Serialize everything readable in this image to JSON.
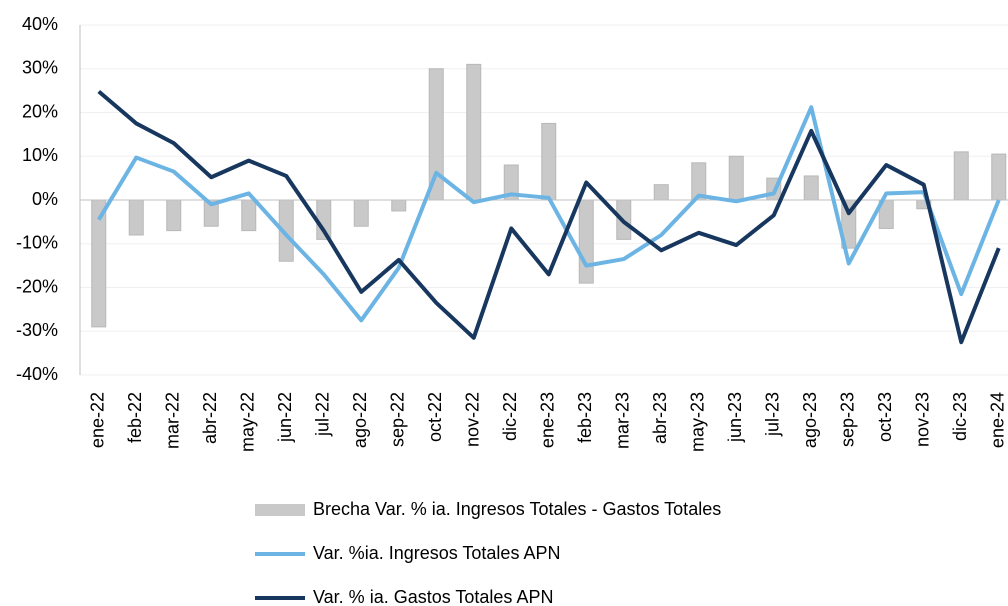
{
  "chart_data": {
    "type": "bar",
    "categories": [
      "ene-22",
      "feb-22",
      "mar-22",
      "abr-22",
      "may-22",
      "jun-22",
      "jul-22",
      "ago-22",
      "sep-22",
      "oct-22",
      "nov-22",
      "dic-22",
      "ene-23",
      "feb-23",
      "mar-23",
      "abr-23",
      "may-23",
      "jun-23",
      "jul-23",
      "ago-23",
      "sep-23",
      "oct-23",
      "nov-23",
      "dic-23",
      "ene-24"
    ],
    "series": [
      {
        "name": "Brecha Var. % ia. Ingresos Totales - Gastos Totales",
        "type": "bar",
        "color": "#c9c9c9",
        "values": [
          -29,
          -8,
          -7,
          -6,
          -7,
          -14,
          -9,
          -6,
          -2.5,
          30,
          31,
          8,
          17.5,
          -19,
          -9,
          3.5,
          8.5,
          10,
          5,
          5.5,
          -11,
          -6.5,
          -2,
          11,
          10.5
        ]
      },
      {
        "name": "Var. %ia. Ingresos Totales APN",
        "type": "line",
        "color": "#6cb4e4",
        "values": [
          -4.5,
          9.7,
          6.5,
          -1,
          1.5,
          -8,
          -17,
          -27.5,
          -15.5,
          6.2,
          -0.5,
          1.3,
          0.5,
          -15,
          -13.5,
          -8,
          1,
          -0.3,
          1.5,
          21.2,
          -14.5,
          1.5,
          1.8,
          -21.5,
          0
        ]
      },
      {
        "name": "Var. % ia. Gastos Totales APN",
        "type": "line",
        "color": "#17375e",
        "values": [
          24.8,
          17.5,
          13,
          5.2,
          9,
          5.5,
          -7,
          -21,
          -13.7,
          -23.5,
          -31.5,
          -6.5,
          -17,
          4,
          -5,
          -11.5,
          -7.5,
          -10.3,
          -3.5,
          15.8,
          -3,
          8,
          3.5,
          -32.5,
          -11
        ]
      }
    ],
    "ylim": [
      -40,
      40
    ],
    "yticks": [
      {
        "value": -40,
        "label": "-40%"
      },
      {
        "value": -30,
        "label": "-30%"
      },
      {
        "value": -20,
        "label": "-20%"
      },
      {
        "value": -10,
        "label": "-10%"
      },
      {
        "value": 0,
        "label": "0%"
      },
      {
        "value": 10,
        "label": "10%"
      },
      {
        "value": 20,
        "label": "20%"
      },
      {
        "value": 30,
        "label": "30%"
      },
      {
        "value": 40,
        "label": "40%"
      }
    ],
    "grid": true,
    "legend": "bottom"
  }
}
